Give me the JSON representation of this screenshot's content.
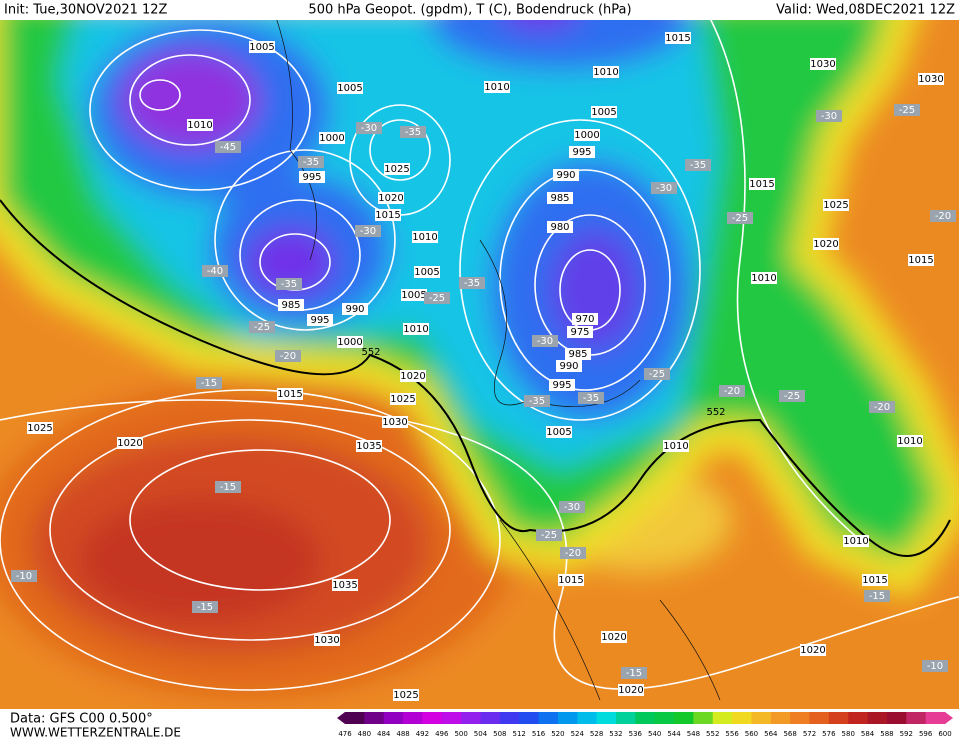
{
  "header": {
    "init": "Init: Tue,30NOV2021 12Z",
    "title": "500 hPa Geopot. (gpdm), T (C), Bodendruck (hPa)",
    "valid": "Valid: Wed,08DEC2021 12Z"
  },
  "footer": {
    "data": "Data: GFS C00 0.500°",
    "site": "WWW.WETTERZENTRALE.DE"
  },
  "map": {
    "isobar_labels": [
      1005,
      1005,
      1010,
      1000,
      995,
      1025,
      1020,
      1015,
      1010,
      1005,
      1005,
      990,
      995,
      1000,
      985,
      1010,
      1020,
      1015,
      1025,
      1030,
      1035,
      1025,
      1020,
      1035,
      1030,
      1025,
      1010,
      1010,
      1015,
      1005,
      1000,
      995,
      990,
      985,
      980,
      970,
      975,
      985,
      990,
      995,
      1005,
      1010,
      1015,
      1020,
      1020,
      1020,
      1010,
      1015,
      1015,
      1025,
      1020,
      1015,
      1010,
      1030,
      1030,
      1010
    ],
    "temperature_labels": [
      -45,
      -35,
      -30,
      -35,
      -30,
      -40,
      -35,
      -25,
      -20,
      -15,
      -35,
      -25,
      -30,
      -35,
      -35,
      -25,
      -35,
      -30,
      -25,
      -30,
      -25,
      -20,
      -25,
      -20,
      -30,
      -25,
      -20,
      -15,
      -15,
      -10,
      -15,
      -15,
      -10,
      -20
    ],
    "geopotential_labels": [
      552,
      552
    ]
  },
  "colorbar": {
    "ticks": [
      476,
      480,
      484,
      488,
      492,
      496,
      500,
      504,
      508,
      512,
      516,
      520,
      524,
      528,
      532,
      536,
      540,
      544,
      548,
      552,
      556,
      560,
      564,
      568,
      572,
      576,
      580,
      584,
      588,
      592,
      596,
      600
    ]
  }
}
